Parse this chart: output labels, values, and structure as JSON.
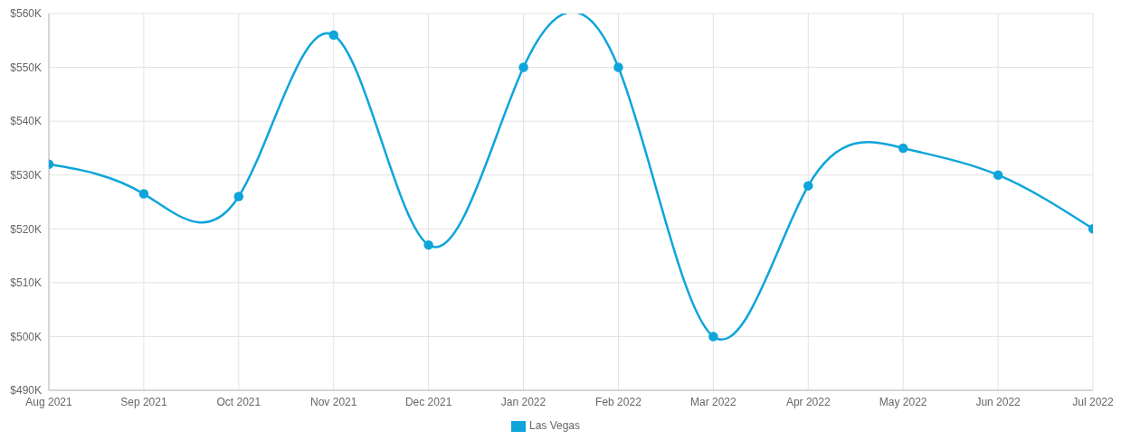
{
  "chart_data": {
    "type": "line",
    "categories": [
      "Aug 2021",
      "Sep 2021",
      "Oct 2021",
      "Nov 2021",
      "Dec 2021",
      "Jan 2022",
      "Feb 2022",
      "Mar 2022",
      "Apr 2022",
      "May 2022",
      "Jun 2022",
      "Jul 2022"
    ],
    "series": [
      {
        "name": "Las Vegas",
        "color": "#0ea5db",
        "values": [
          532000,
          526500,
          526000,
          556000,
          517000,
          550000,
          550000,
          500000,
          528000,
          535000,
          530000,
          520000
        ]
      }
    ],
    "ylim": [
      490000,
      560000
    ],
    "yticks": [
      {
        "value": 490000,
        "label": "$490K"
      },
      {
        "value": 500000,
        "label": "$500K"
      },
      {
        "value": 510000,
        "label": "$510K"
      },
      {
        "value": 520000,
        "label": "$520K"
      },
      {
        "value": 530000,
        "label": "$530K"
      },
      {
        "value": 540000,
        "label": "$540K"
      },
      {
        "value": 550000,
        "label": "$550K"
      },
      {
        "value": 560000,
        "label": "$560K"
      }
    ],
    "grid": true,
    "legend": "bottom",
    "marker": "circle",
    "line_style": "solid"
  }
}
